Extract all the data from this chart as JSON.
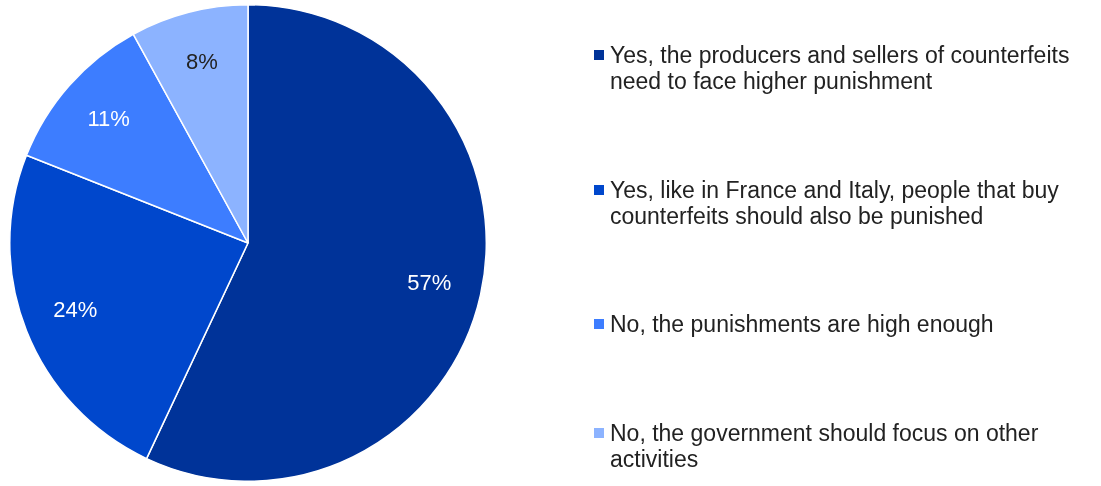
{
  "chart_data": {
    "type": "pie",
    "categories": [
      "Yes, the producers and sellers of counterfeits need to face higher punishment",
      "Yes, like in France and Italy, people that buy counterfeits should also be punished",
      "No, the punishments are high enough",
      "No, the government should focus on other activities"
    ],
    "values": [
      57,
      24,
      11,
      8
    ],
    "colors": [
      "#003399",
      "#0047cc",
      "#3d7dff",
      "#8cb3ff"
    ],
    "value_labels": [
      "57%",
      "24%",
      "11%",
      "8%"
    ],
    "legend": "right"
  }
}
